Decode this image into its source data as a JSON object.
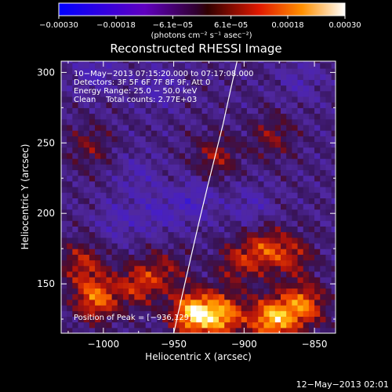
{
  "chart_data": {
    "type": "heatmap",
    "title": "Reconstructed RHESSI Image",
    "xlabel": "Heliocentric X (arcsec)",
    "ylabel": "Heliocentric Y (arcsec)",
    "xlim": [
      -1030,
      -835
    ],
    "ylim": [
      115,
      308
    ],
    "x_ticks": [
      -1000,
      -950,
      -900,
      -850
    ],
    "x_tick_labels": [
      "−1000",
      "−950",
      "−900",
      "−850"
    ],
    "y_ticks": [
      150,
      200,
      250,
      300
    ],
    "y_tick_labels": [
      "150",
      "200",
      "250",
      "300"
    ],
    "colorbar": {
      "range": [
        -0.0003,
        0.0003
      ],
      "ticks": [
        -0.0003,
        -0.00018,
        -6.1e-05,
        6.1e-05,
        0.00018,
        0.0003
      ],
      "tick_labels": [
        "−0.00030",
        "−0.00018",
        "−6.1e−05",
        "6.1e−05",
        "0.00018",
        "0.00030"
      ],
      "unit_label": "(photons cm⁻² s⁻¹ asec⁻²)"
    },
    "annotations": [
      "10−May−2013 07:15:20.000 to 07:17:08.000",
      "Detectors: 3F 5F 6F 7F 8F 9F, Att 0",
      "Energy Range: 25.0 − 50.0 keV",
      "Clean    Total counts: 2.77E+03"
    ],
    "peak_label": "Position of Peak = [−936,129]",
    "limb_curve": {
      "x": [
        -950,
        -944,
        -938,
        -932,
        -926,
        -920,
        -915,
        -910,
        -905
      ],
      "y": [
        115,
        142,
        168,
        194,
        219,
        243,
        263,
        286,
        308
      ]
    },
    "sources": [
      {
        "x": -1005,
        "y": 140,
        "value": 0.00022
      },
      {
        "x": -975,
        "y": 150,
        "value": 0.00016
      },
      {
        "x": -1015,
        "y": 165,
        "value": 0.00014
      },
      {
        "x": -955,
        "y": 160,
        "value": 0.0001
      },
      {
        "x": -936,
        "y": 129,
        "value": 0.0003
      },
      {
        "x": -915,
        "y": 128,
        "value": 0.00024
      },
      {
        "x": -880,
        "y": 125,
        "value": 0.00028
      },
      {
        "x": -858,
        "y": 135,
        "value": 0.00022
      },
      {
        "x": -885,
        "y": 175,
        "value": 0.00016
      },
      {
        "x": -905,
        "y": 165,
        "value": 0.00012
      },
      {
        "x": -865,
        "y": 170,
        "value": 0.00012
      },
      {
        "x": -920,
        "y": 240,
        "value": 0.00012
      },
      {
        "x": -880,
        "y": 255,
        "value": 0.0001
      },
      {
        "x": -1010,
        "y": 248,
        "value": 9e-05
      },
      {
        "x": -975,
        "y": 228,
        "value": -6e-05
      },
      {
        "x": -1005,
        "y": 300,
        "value": -8e-05
      },
      {
        "x": -960,
        "y": 290,
        "value": -7e-05
      },
      {
        "x": -935,
        "y": 210,
        "value": -9e-05
      },
      {
        "x": -960,
        "y": 200,
        "value": -8e-05
      },
      {
        "x": -895,
        "y": 205,
        "value": -7e-05
      },
      {
        "x": -860,
        "y": 295,
        "value": -6e-05
      },
      {
        "x": -990,
        "y": 195,
        "value": -7e-05
      }
    ]
  },
  "footer": {
    "timestamp": "12−May−2013 02:01"
  }
}
